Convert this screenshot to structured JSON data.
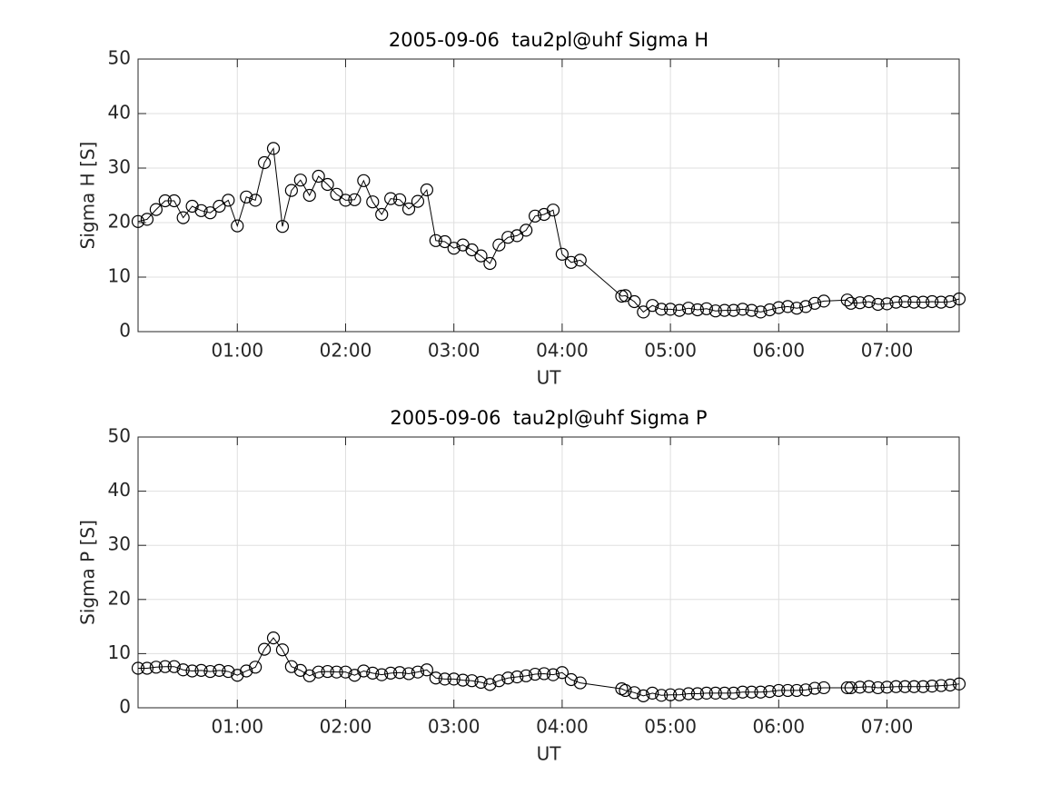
{
  "chart_data": [
    {
      "type": "line",
      "title": "2005-09-06  tau2pl@uhf Sigma H",
      "x_label": "UT",
      "y_label": "Sigma H [S]",
      "x": [
        5,
        10,
        15,
        20,
        25,
        30,
        35,
        40,
        45,
        50,
        55,
        60,
        65,
        70,
        75,
        80,
        85,
        90,
        95,
        100,
        105,
        110,
        115,
        120,
        125,
        130,
        135,
        140,
        145,
        150,
        155,
        160,
        165,
        170,
        175,
        180,
        185,
        190,
        195,
        200,
        205,
        210,
        215,
        220,
        225,
        230,
        235,
        240,
        245,
        250,
        273,
        275,
        280,
        285,
        290,
        295,
        300,
        305,
        310,
        315,
        320,
        325,
        330,
        335,
        340,
        345,
        350,
        355,
        360,
        365,
        370,
        375,
        380,
        385,
        398,
        400,
        405,
        410,
        415,
        420,
        425,
        430,
        435,
        440,
        445,
        450,
        455,
        460
      ],
      "series": [
        {
          "color": "#000000",
          "values": [
            20.2,
            20.6,
            22.4,
            24,
            24,
            20.9,
            23,
            22.2,
            21.8,
            23,
            24.1,
            19.4,
            24.7,
            24.1,
            31,
            33.6,
            19.3,
            25.9,
            27.8,
            25,
            28.5,
            27,
            25.2,
            24.1,
            24.2,
            27.7,
            23.8,
            21.5,
            24.4,
            24.2,
            22.5,
            23.9,
            26,
            16.7,
            16.5,
            15.3,
            15.9,
            15,
            13.9,
            12.5,
            15.9,
            17.3,
            17.6,
            18.6,
            21.2,
            21.5,
            22.3,
            14.2,
            12.7,
            13.1,
            6.5,
            6.6,
            5.5,
            3.6,
            4.8,
            4.1,
            4.1,
            3.9,
            4.3,
            4,
            4.2,
            3.8,
            3.9,
            3.9,
            4.1,
            3.9,
            3.6,
            4,
            4.4,
            4.6,
            4.3,
            4.6,
            5.2,
            5.6,
            5.8,
            5.2,
            5.3,
            5.5,
            5,
            5.1,
            5.4,
            5.5,
            5.4,
            5.4,
            5.5,
            5.4,
            5.5,
            6
          ]
        }
      ],
      "xlim": [
        5,
        460
      ],
      "xticks": [
        {
          "value": 60,
          "label": "01:00"
        },
        {
          "value": 120,
          "label": "02:00"
        },
        {
          "value": 180,
          "label": "03:00"
        },
        {
          "value": 240,
          "label": "04:00"
        },
        {
          "value": 300,
          "label": "05:00"
        },
        {
          "value": 360,
          "label": "06:00"
        },
        {
          "value": 420,
          "label": "07:00"
        }
      ],
      "ylim": [
        0,
        50
      ],
      "yticks": [
        0,
        10,
        20,
        30,
        40,
        50
      ],
      "grid": true
    },
    {
      "type": "line",
      "title": "2005-09-06  tau2pl@uhf Sigma P",
      "x_label": "UT",
      "y_label": "Sigma P [S]",
      "x": [
        5,
        10,
        15,
        20,
        25,
        30,
        35,
        40,
        45,
        50,
        55,
        60,
        65,
        70,
        75,
        80,
        85,
        90,
        95,
        100,
        105,
        110,
        115,
        120,
        125,
        130,
        135,
        140,
        145,
        150,
        155,
        160,
        165,
        170,
        175,
        180,
        185,
        190,
        195,
        200,
        205,
        210,
        215,
        220,
        225,
        230,
        235,
        240,
        245,
        250,
        273,
        275,
        280,
        285,
        290,
        295,
        300,
        305,
        310,
        315,
        320,
        325,
        330,
        335,
        340,
        345,
        350,
        355,
        360,
        365,
        370,
        375,
        380,
        385,
        398,
        400,
        405,
        410,
        415,
        420,
        425,
        430,
        435,
        440,
        445,
        450,
        455,
        460
      ],
      "series": [
        {
          "color": "#000000",
          "values": [
            7.3,
            7.3,
            7.5,
            7.6,
            7.6,
            7,
            6.8,
            6.9,
            6.7,
            6.9,
            6.7,
            6,
            6.8,
            7.5,
            10.8,
            12.9,
            10.7,
            7.6,
            6.9,
            5.9,
            6.6,
            6.7,
            6.6,
            6.6,
            6,
            6.8,
            6.4,
            6.1,
            6.4,
            6.5,
            6.3,
            6.6,
            7,
            5.5,
            5.3,
            5.3,
            5.1,
            5,
            4.7,
            4.3,
            5,
            5.5,
            5.7,
            5.9,
            6.2,
            6.3,
            6.1,
            6.5,
            5.2,
            4.6,
            3.5,
            3.2,
            2.8,
            2.2,
            2.7,
            2.3,
            2.4,
            2.4,
            2.6,
            2.6,
            2.7,
            2.7,
            2.7,
            2.7,
            2.9,
            2.9,
            2.9,
            3,
            3.2,
            3.2,
            3.2,
            3.3,
            3.6,
            3.7,
            3.7,
            3.7,
            3.8,
            3.9,
            3.7,
            3.8,
            3.9,
            3.9,
            3.9,
            3.9,
            4,
            4.1,
            4.2,
            4.4
          ]
        }
      ],
      "xlim": [
        5,
        460
      ],
      "xticks": [
        {
          "value": 60,
          "label": "01:00"
        },
        {
          "value": 120,
          "label": "02:00"
        },
        {
          "value": 180,
          "label": "03:00"
        },
        {
          "value": 240,
          "label": "04:00"
        },
        {
          "value": 300,
          "label": "05:00"
        },
        {
          "value": 360,
          "label": "06:00"
        },
        {
          "value": 420,
          "label": "07:00"
        }
      ],
      "ylim": [
        0,
        50
      ],
      "yticks": [
        0,
        10,
        20,
        30,
        40,
        50
      ],
      "grid": true
    }
  ]
}
